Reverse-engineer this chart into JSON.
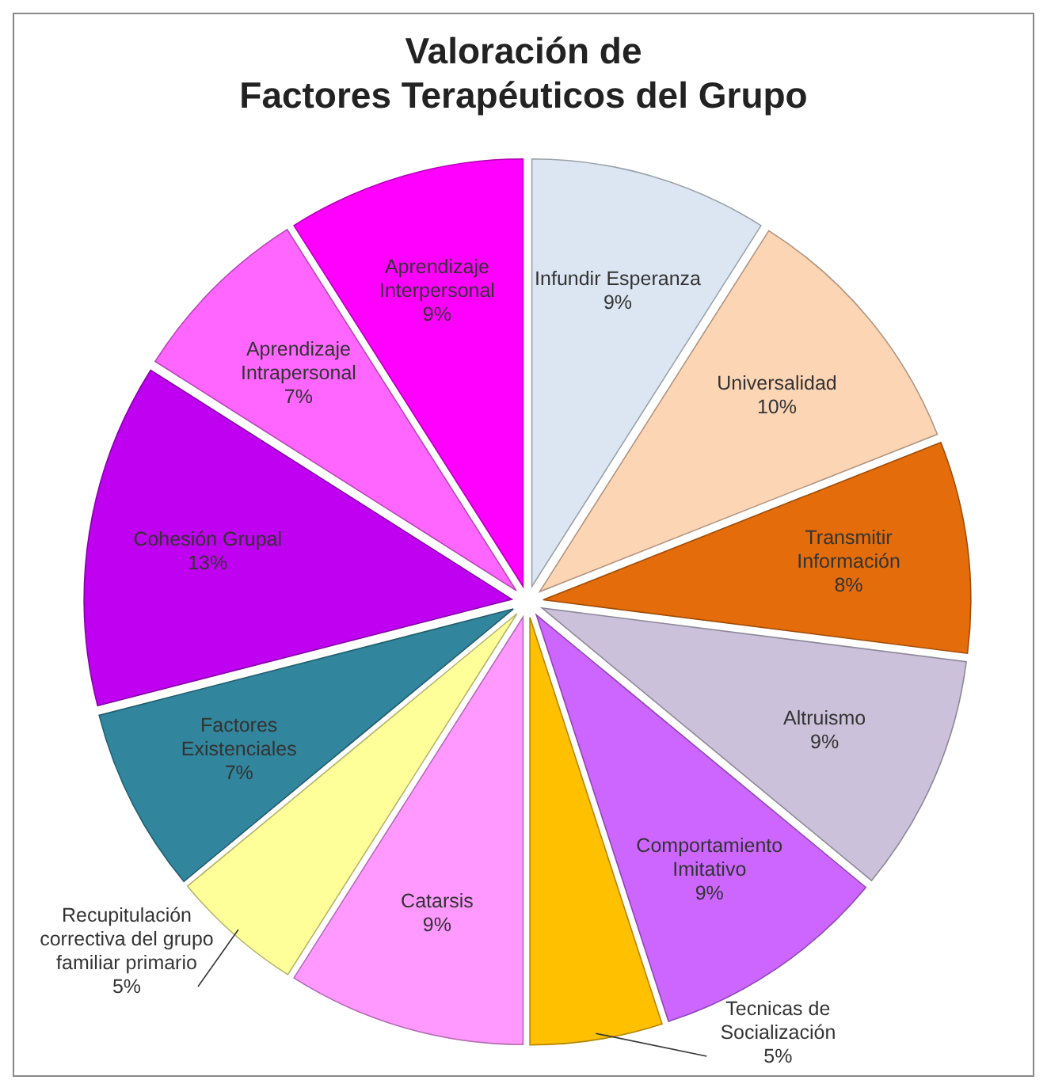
{
  "chart_data": {
    "type": "pie",
    "title": "Valoración de\nFactores Terapéuticos del Grupo",
    "categories": [
      "Infundir Esperanza",
      "Universalidad",
      "Transmitir Información",
      "Altruismo",
      "Comportamiento Imitativo",
      "Tecnicas de Socialización",
      "Catarsis",
      "Recupitulación correctiva del grupo familiar primario",
      "Factores Existenciales",
      "Cohesión Grupal",
      "Aprendizaje Intrapersonal",
      "Aprendizaje Interpersonal"
    ],
    "values": [
      9,
      10,
      8,
      9,
      9,
      5,
      9,
      5,
      7,
      13,
      7,
      9
    ],
    "colors": [
      "#dce6f2",
      "#fcd5b5",
      "#e46c0a",
      "#ccc1da",
      "#cc66ff",
      "#ffc000",
      "#ff99ff",
      "#ffff99",
      "#31859c",
      "#c000f0",
      "#ff66ff",
      "#ff00ff"
    ],
    "value_labels": [
      "9%",
      "10%",
      "8%",
      "9%",
      "9%",
      "5%",
      "9%",
      "5%",
      "7%",
      "13%",
      "7%",
      "9%"
    ]
  }
}
